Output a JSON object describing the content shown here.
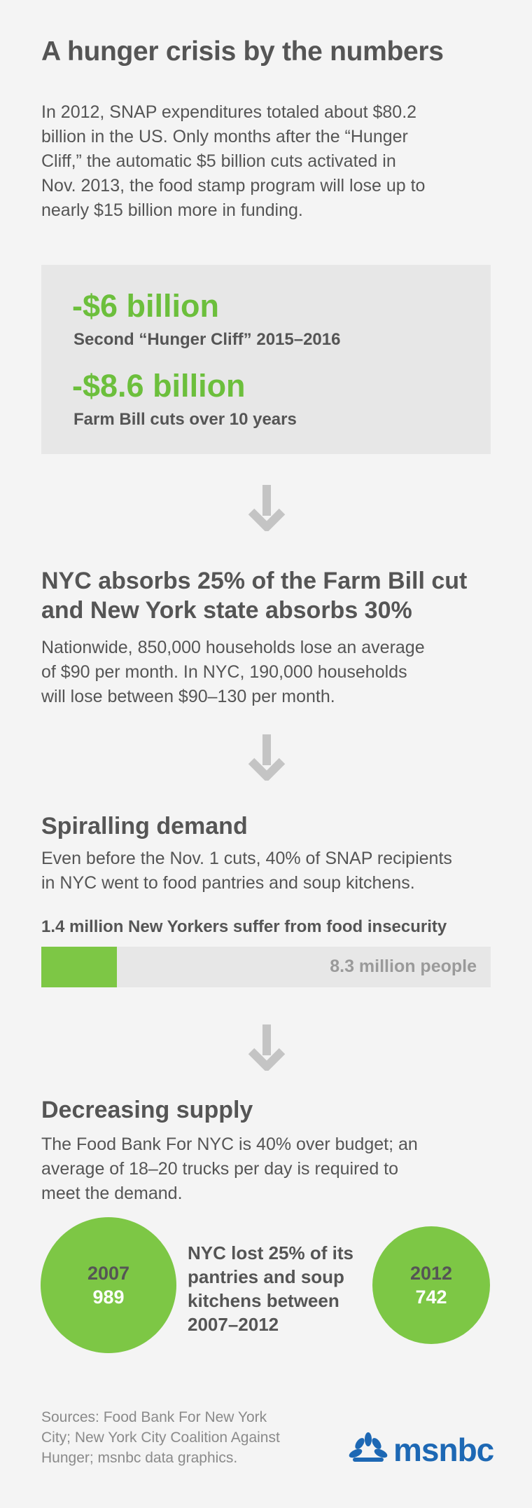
{
  "title": "A hunger crisis by the numbers",
  "intro": [
    "In 2012, SNAP expenditures totaled about $80.2",
    "billion in the US. Only months after the “Hunger",
    "Cliff,” the automatic $5 billion cuts activated in",
    "Nov. 2013, the food stamp program will lose up to",
    "nearly $15 billion more in funding."
  ],
  "stats": [
    {
      "value": "-$6 billion",
      "label": "Second “Hunger Cliff” 2015–2016"
    },
    {
      "value": "-$8.6 billion",
      "label": "Farm Bill cuts over 10 years"
    }
  ],
  "nyc": {
    "heading": [
      "NYC absorbs 25% of the Farm Bill cut",
      "and New York state absorbs 30%"
    ],
    "text": [
      "Nationwide, 850,000 households lose an average",
      "of $90 per month. In NYC, 190,000 households",
      "will lose between $90–130 per month."
    ]
  },
  "demand": {
    "heading": "Spiralling demand",
    "text": [
      "Even before the Nov. 1 cuts, 40% of SNAP recipients",
      "in NYC went to food pantries and soup kitchens."
    ],
    "bar_title": "1.4 million New Yorkers suffer from food insecurity",
    "bar_total_label": "8.3 million people"
  },
  "supply": {
    "heading": "Decreasing supply",
    "text": [
      "The Food Bank For NYC is 40% over budget; an",
      "average of 18–20 trucks per day is required to",
      "meet the demand."
    ],
    "circle_label": [
      "NYC lost 25% of its",
      "pantries and soup",
      "kitchens between",
      "2007–2012"
    ]
  },
  "chart_data": [
    {
      "type": "bar",
      "title": "1.4 million New Yorkers suffer from food insecurity",
      "categories": [
        "Food insecure New Yorkers"
      ],
      "values": [
        1.4
      ],
      "total": 8.3,
      "total_label": "8.3 million people",
      "unit": "million people"
    },
    {
      "type": "bubble",
      "title": "NYC lost 25% of its pantries and soup kitchens between 2007–2012",
      "categories": [
        "2007",
        "2012"
      ],
      "values": [
        989,
        742
      ]
    }
  ],
  "sources": [
    "Sources: Food Bank For New York",
    "City; New York City Coalition Against",
    "Hunger; msnbc data graphics."
  ],
  "logo": {
    "text": "msnbc"
  },
  "colors": {
    "accent_green": "#6cbf3c",
    "bar_green": "#7dc745",
    "logo_blue": "#1d68b4",
    "arrow_gray": "#c4c4c4"
  }
}
